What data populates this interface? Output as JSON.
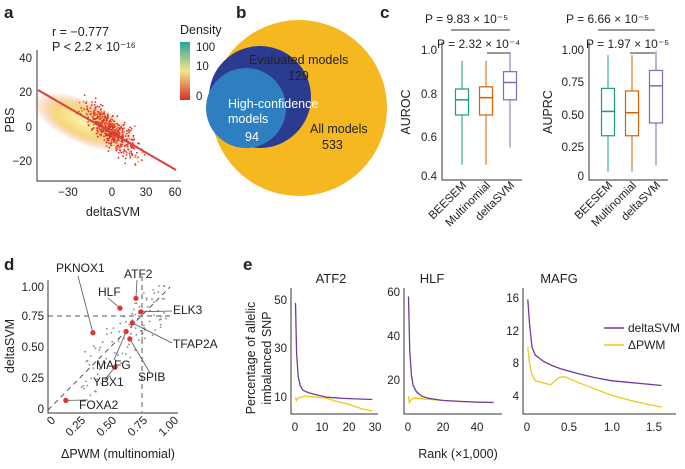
{
  "panels": {
    "a": {
      "label": "a",
      "stat_r": "r = −0.777",
      "stat_p": "P < 2.2 × 10⁻¹⁶",
      "xlabel": "deltaSVM",
      "ylabel": "PBS",
      "xticks": [
        "−30",
        "0",
        "30",
        "60"
      ],
      "yticks": [
        "40",
        "20",
        "0",
        "−20"
      ],
      "legend_title": "Density",
      "legend_ticks": [
        "100",
        "10",
        "0"
      ],
      "colors": {
        "high": "#2aa39a",
        "mid": "#f3e68a",
        "low": "#d73027"
      }
    },
    "b": {
      "label": "b",
      "all_label": "All models",
      "all_count": "533",
      "eval_label": "Evaluated models",
      "eval_count": "129",
      "hc_label_1": "High-confidence",
      "hc_label_2": "models",
      "hc_count": "94",
      "colors": {
        "all": "#f5b820",
        "eval": "#2b3b8f",
        "hc": "#2d7fc1"
      }
    },
    "c": {
      "label": "c",
      "groups": [
        "BEESEM",
        "Multinomial",
        "deltaSVM"
      ],
      "group_colors": [
        "#1b9e77",
        "#d95f02",
        "#7570b3"
      ],
      "auroc": {
        "ylabel": "AUROC",
        "yticks": [
          "1.0",
          "0.8",
          "0.6",
          "0.4"
        ],
        "p_top": "P = 9.83 × 10⁻⁵",
        "p_bottom": "P = 2.32 × 10⁻⁴",
        "boxes": [
          {
            "min": 0.47,
            "q1": 0.7,
            "median": 0.77,
            "q3": 0.82,
            "max": 0.95
          },
          {
            "min": 0.47,
            "q1": 0.7,
            "median": 0.78,
            "q3": 0.83,
            "max": 0.95
          },
          {
            "min": 0.55,
            "q1": 0.77,
            "median": 0.85,
            "q3": 0.9,
            "max": 0.99
          }
        ]
      },
      "auprc": {
        "ylabel": "AUPRC",
        "yticks": [
          "1.00",
          "0.75",
          "0.50",
          "0.25",
          "0"
        ],
        "p_top": "P = 6.66 × 10⁻⁵",
        "p_bottom": "P = 1.97 × 10⁻⁵",
        "boxes": [
          {
            "min": 0.05,
            "q1": 0.33,
            "median": 0.52,
            "q3": 0.7,
            "max": 0.96
          },
          {
            "min": 0.05,
            "q1": 0.33,
            "median": 0.51,
            "q3": 0.68,
            "max": 0.96
          },
          {
            "min": 0.1,
            "q1": 0.43,
            "median": 0.72,
            "q3": 0.84,
            "max": 0.99
          }
        ]
      }
    },
    "d": {
      "label": "d",
      "xlabel": "ΔPWM (multinomial)",
      "ylabel": "deltaSVM",
      "xticks": [
        "0",
        "0.25",
        "0.50",
        "0.75",
        "1.00"
      ],
      "yticks": [
        "1.00",
        "0.75",
        "0.50",
        "0.25",
        "0"
      ],
      "points": [
        {
          "name": "PKNOX1",
          "x": 0.3,
          "y": 0.62
        },
        {
          "name": "ATF2",
          "x": 0.65,
          "y": 0.9
        },
        {
          "name": "HLF",
          "x": 0.52,
          "y": 0.82
        },
        {
          "name": "ELK3",
          "x": 0.69,
          "y": 0.79
        },
        {
          "name": "TFAP2A",
          "x": 0.62,
          "y": 0.7
        },
        {
          "name": "MAFG",
          "x": 0.57,
          "y": 0.63
        },
        {
          "name": "SPIB",
          "x": 0.6,
          "y": 0.57
        },
        {
          "name": "YBX1",
          "x": 0.48,
          "y": 0.34
        },
        {
          "name": "FOXA2",
          "x": 0.08,
          "y": 0.07
        }
      ]
    },
    "e": {
      "label": "e",
      "ylabel_1": "Percentage of allelic",
      "ylabel_2": "imbalanced SNP",
      "xlabel": "Rank (×1,000)",
      "legend": [
        {
          "name": "deltaSVM",
          "color": "#6a3d9a"
        },
        {
          "name": "ΔPWM",
          "color": "#f5c518"
        }
      ],
      "subplots": [
        {
          "title": "ATF2",
          "xticks": [
            "0",
            "10",
            "20",
            "30"
          ],
          "yticks": [
            "50",
            "30",
            "10"
          ],
          "xlim": [
            0,
            30
          ],
          "ylim": [
            5,
            55
          ],
          "deltasvm": [
            [
              0.2,
              52
            ],
            [
              0.6,
              30
            ],
            [
              1.2,
              20
            ],
            [
              2,
              16
            ],
            [
              3,
              14
            ],
            [
              5,
              13
            ],
            [
              8,
              12
            ],
            [
              12,
              11
            ],
            [
              18,
              10.5
            ],
            [
              24,
              10.2
            ],
            [
              29,
              10
            ]
          ],
          "dpwm": [
            [
              0.2,
              11
            ],
            [
              0.5,
              9.5
            ],
            [
              1,
              10.5
            ],
            [
              2,
              11
            ],
            [
              4,
              11.5
            ],
            [
              8,
              11
            ],
            [
              12,
              10.5
            ],
            [
              16,
              9
            ],
            [
              20,
              8
            ],
            [
              25,
              6
            ],
            [
              29,
              5
            ]
          ]
        },
        {
          "title": "HLF",
          "xticks": [
            "0",
            "20",
            "40"
          ],
          "yticks": [
            "60",
            "40",
            "20"
          ],
          "xlim": [
            0,
            52
          ],
          "ylim": [
            5,
            62
          ],
          "deltasvm": [
            [
              0.3,
              59
            ],
            [
              1,
              34
            ],
            [
              2,
              22
            ],
            [
              3,
              17
            ],
            [
              5,
              14
            ],
            [
              8,
              12
            ],
            [
              12,
              11
            ],
            [
              20,
              10
            ],
            [
              30,
              9.5
            ],
            [
              40,
              9.2
            ],
            [
              50,
              9
            ]
          ],
          "dpwm": [
            [
              0.3,
              12
            ],
            [
              0.8,
              9
            ],
            [
              1.5,
              10
            ],
            [
              3,
              11
            ],
            [
              6,
              11
            ],
            [
              12,
              10.5
            ],
            [
              20,
              10
            ],
            [
              30,
              9.5
            ],
            [
              40,
              9.2
            ],
            [
              50,
              9
            ]
          ]
        },
        {
          "title": "MAFG",
          "xticks": [
            "0",
            "0.5",
            "1.0",
            "1.5"
          ],
          "yticks": [
            "16",
            "12",
            "8",
            "4"
          ],
          "xlim": [
            0,
            1.7
          ],
          "ylim": [
            2,
            16.8
          ],
          "deltasvm": [
            [
              0.01,
              16
            ],
            [
              0.03,
              13
            ],
            [
              0.06,
              10
            ],
            [
              0.1,
              9
            ],
            [
              0.2,
              8.2
            ],
            [
              0.3,
              7.7
            ],
            [
              0.4,
              7.3
            ],
            [
              0.5,
              7
            ],
            [
              0.6,
              6.7
            ],
            [
              0.8,
              6.2
            ],
            [
              1.0,
              5.8
            ],
            [
              1.2,
              5.6
            ],
            [
              1.4,
              5.4
            ],
            [
              1.6,
              5.2
            ]
          ],
          "dpwm": [
            [
              0.01,
              10
            ],
            [
              0.03,
              8
            ],
            [
              0.06,
              6.5
            ],
            [
              0.1,
              5.8
            ],
            [
              0.2,
              5.5
            ],
            [
              0.28,
              5.3
            ],
            [
              0.38,
              6.2
            ],
            [
              0.45,
              6.3
            ],
            [
              0.6,
              5.6
            ],
            [
              0.8,
              4.8
            ],
            [
              1.0,
              4.0
            ],
            [
              1.2,
              3.4
            ],
            [
              1.4,
              2.9
            ],
            [
              1.6,
              2.5
            ]
          ]
        }
      ]
    }
  }
}
